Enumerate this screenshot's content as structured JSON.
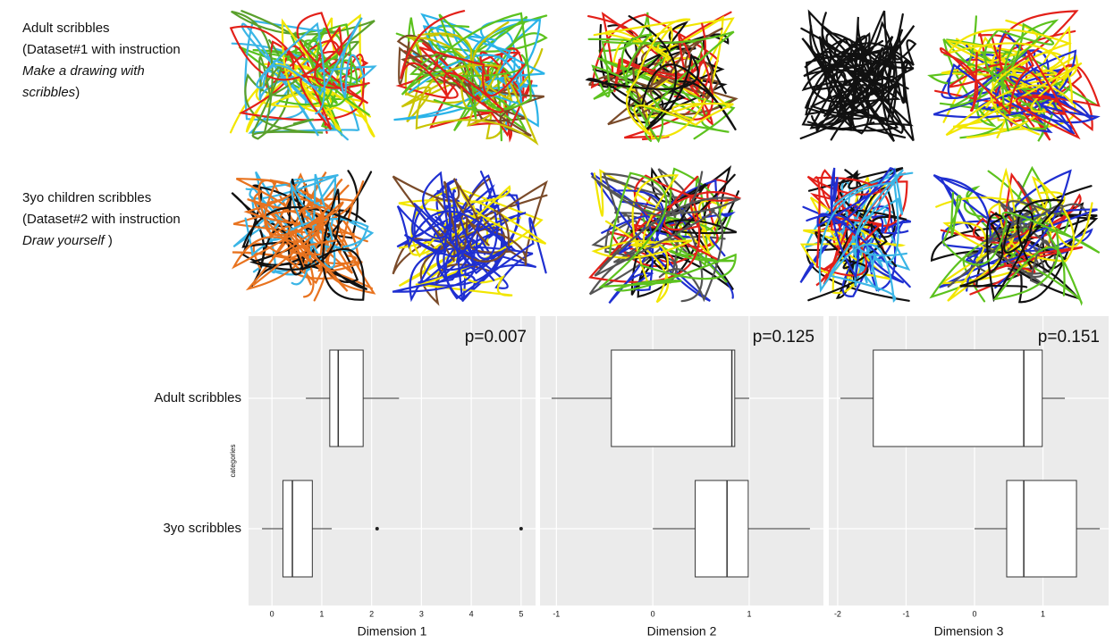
{
  "rows": [
    {
      "lines": [
        [
          {
            "text": "Adult scribbles"
          }
        ],
        [
          {
            "text": "(Dataset#1 with instruction"
          }
        ],
        [
          {
            "text": "Make a drawing with",
            "italic": true
          }
        ],
        [
          {
            "text": "scribbles",
            "italic": true
          },
          {
            "text": ")"
          }
        ]
      ]
    },
    {
      "lines": [
        [
          {
            "text": "3yo children scribbles"
          }
        ],
        [
          {
            "text": "(Dataset#2 with instruction"
          }
        ],
        [
          {
            "text": "Draw yourself",
            "italic": true
          },
          {
            "text": " )"
          }
        ]
      ]
    }
  ],
  "chart_data": [
    {
      "type": "box",
      "x_label": "Dimension 1",
      "annotation": "p=0.007",
      "y_label": "categories",
      "categories": [
        "Adult scribbles",
        "3yo scribbles"
      ],
      "xlim": [
        -0.47,
        5.29
      ],
      "xticks": [
        0,
        1,
        2,
        3,
        4,
        5
      ],
      "grid": true,
      "boxes": [
        {
          "min": 0.68,
          "q1": 1.16,
          "median": 1.33,
          "q3": 1.83,
          "max": 2.55,
          "outliers": []
        },
        {
          "min": -0.2,
          "q1": 0.22,
          "median": 0.41,
          "q3": 0.81,
          "max": 1.2,
          "outliers": [
            2.11,
            5.0
          ]
        }
      ]
    },
    {
      "type": "box",
      "x_label": "Dimension 2",
      "annotation": "p=0.125",
      "xlim": [
        -1.17,
        1.77
      ],
      "xticks": [
        -1,
        0,
        1
      ],
      "grid": true,
      "boxes": [
        {
          "min": -1.05,
          "q1": -0.43,
          "median": 0.82,
          "q3": 0.85,
          "max": 1.0,
          "outliers": []
        },
        {
          "min": 0,
          "q1": 0.44,
          "median": 0.77,
          "q3": 0.99,
          "max": 1.63,
          "outliers": []
        }
      ]
    },
    {
      "type": "box",
      "x_label": "Dimension 3",
      "annotation": "p=0.151",
      "xlim": [
        -2.13,
        1.96
      ],
      "xticks": [
        -2,
        -1,
        0,
        1
      ],
      "grid": true,
      "boxes": [
        {
          "min": -1.96,
          "q1": -1.48,
          "median": 0.72,
          "q3": 0.99,
          "max": 1.32,
          "outliers": []
        },
        {
          "min": 0,
          "q1": 0.47,
          "median": 0.72,
          "q3": 1.49,
          "max": 1.83,
          "outliers": []
        }
      ]
    }
  ]
}
